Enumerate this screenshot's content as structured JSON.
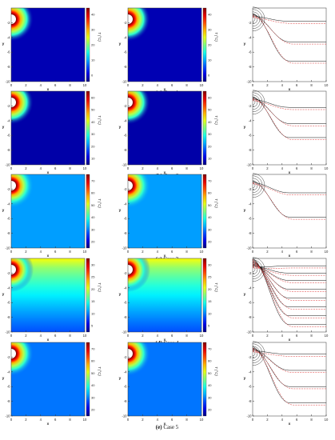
{
  "figure": {
    "cases": [
      {
        "tag": "(a)",
        "label": "Case 1",
        "cb_ticks_1": [
          "40",
          "30",
          "20",
          "10",
          "0"
        ],
        "cb_ticks_2": [
          "40",
          "30",
          "20",
          "10",
          "0"
        ]
      },
      {
        "tag": "(b)",
        "label": "Case 2",
        "cb_ticks_1": [
          "60",
          "50",
          "40",
          "30",
          "20",
          "10"
        ],
        "cb_ticks_2": [
          "60",
          "50",
          "40",
          "30",
          "20",
          "10"
        ]
      },
      {
        "tag": "(c)",
        "label": "Case 3",
        "cb_ticks_1": [
          "70",
          "60",
          "50",
          "40",
          "30",
          "20"
        ],
        "cb_ticks_2": [
          "70",
          "60",
          "50",
          "40",
          "30",
          "20"
        ]
      },
      {
        "tag": "(d)",
        "label": "Case 4",
        "cb_ticks_1": [
          "30",
          "25",
          "20",
          "15",
          "10",
          "5"
        ],
        "cb_ticks_2": [
          "30",
          "25",
          "20",
          "15",
          "10",
          "5"
        ]
      },
      {
        "tag": "(e)",
        "label": "Case 5",
        "cb_ticks_1": [
          "70",
          "60",
          "50",
          "40",
          "30",
          "20"
        ],
        "cb_ticks_2": [
          "70",
          "60",
          "50",
          "40",
          "30",
          "20"
        ]
      }
    ]
  },
  "chart_data": [
    {
      "type": "heatmap",
      "case": "Case 1",
      "column": 1,
      "xlabel": "x",
      "ylabel": "y",
      "colorbar_label": "T (°C)",
      "xlim": [
        0,
        10
      ],
      "ylim": [
        -10,
        0
      ],
      "xticks": [
        "0",
        "2",
        "4",
        "6",
        "8",
        "10"
      ],
      "yticks": [
        "-2",
        "-4",
        "-6",
        "-8",
        "-10"
      ],
      "clim": [
        0,
        45
      ],
      "background_level": 0.05
    },
    {
      "type": "heatmap",
      "case": "Case 1",
      "column": 2,
      "xlabel": "x",
      "ylabel": "y",
      "colorbar_label": "T (°C)",
      "xlim": [
        0,
        10
      ],
      "ylim": [
        -10,
        0
      ],
      "xticks": [
        "0",
        "2",
        "4",
        "6",
        "8",
        "10"
      ],
      "yticks": [
        "-2",
        "-4",
        "-6",
        "-8",
        "-10"
      ],
      "clim": [
        0,
        45
      ],
      "background_level": 0.05
    },
    {
      "type": "line",
      "case": "Case 1",
      "column": 3,
      "xlabel": "x",
      "ylabel": "y",
      "xlim": [
        0,
        10
      ],
      "ylim": [
        -10,
        0
      ],
      "xticks": [
        "0",
        "2",
        "4",
        "6",
        "8",
        "10"
      ],
      "yticks": [
        "-2",
        "-4",
        "-6",
        "-8",
        "-10"
      ],
      "isotherm_depths": [
        -1.8,
        -4.6,
        -7.2
      ],
      "dashed_offset": 0.3
    },
    {
      "type": "heatmap",
      "case": "Case 2",
      "column": 1,
      "xlabel": "x",
      "ylabel": "y",
      "colorbar_label": "T (°C)",
      "xlim": [
        0,
        10
      ],
      "ylim": [
        -10,
        0
      ],
      "xticks": [
        "0",
        "2",
        "4",
        "6",
        "8",
        "10"
      ],
      "yticks": [
        "-2",
        "-4",
        "-6",
        "-8",
        "-10"
      ],
      "clim": [
        5,
        65
      ],
      "background_level": 0.04
    },
    {
      "type": "heatmap",
      "case": "Case 2",
      "column": 2,
      "xlabel": "x",
      "ylabel": "y",
      "colorbar_label": "T (°C)",
      "xlim": [
        0,
        10
      ],
      "ylim": [
        -10,
        0
      ],
      "xticks": [
        "0",
        "2",
        "4",
        "6",
        "8",
        "10"
      ],
      "yticks": [
        "-2",
        "-4",
        "-6",
        "-8",
        "-10"
      ],
      "clim": [
        5,
        65
      ],
      "background_level": 0.04
    },
    {
      "type": "line",
      "case": "Case 2",
      "column": 3,
      "xlabel": "x",
      "ylabel": "y",
      "xlim": [
        0,
        10
      ],
      "ylim": [
        -10,
        0
      ],
      "xticks": [
        "0",
        "2",
        "4",
        "6",
        "8",
        "10"
      ],
      "yticks": [
        "-2",
        "-4",
        "-6",
        "-8",
        "-10"
      ],
      "isotherm_depths": [
        -2.2,
        -4.4,
        -6.3
      ],
      "dashed_offset": 0.3
    },
    {
      "type": "heatmap",
      "case": "Case 3",
      "column": 1,
      "xlabel": "x",
      "ylabel": "y",
      "colorbar_label": "T (°C)",
      "xlim": [
        0,
        10
      ],
      "ylim": [
        -10,
        0
      ],
      "xticks": [
        "0",
        "2",
        "4",
        "6",
        "8",
        "10"
      ],
      "yticks": [
        "-2",
        "-4",
        "-6",
        "-8",
        "-10"
      ],
      "clim": [
        15,
        75
      ],
      "background_level": 0.28
    },
    {
      "type": "heatmap",
      "case": "Case 3",
      "column": 2,
      "xlabel": "x",
      "ylabel": "y",
      "colorbar_label": "T (°C)",
      "xlim": [
        0,
        10
      ],
      "ylim": [
        -10,
        0
      ],
      "xticks": [
        "0",
        "2",
        "4",
        "6",
        "8",
        "10"
      ],
      "yticks": [
        "-2",
        "-4",
        "-6",
        "-8",
        "-10"
      ],
      "clim": [
        15,
        75
      ],
      "background_level": 0.28
    },
    {
      "type": "line",
      "case": "Case 3",
      "column": 3,
      "xlabel": "x",
      "ylabel": "y",
      "xlim": [
        0,
        10
      ],
      "ylim": [
        -10,
        0
      ],
      "xticks": [
        "0",
        "2",
        "4",
        "6",
        "8",
        "10"
      ],
      "yticks": [
        "-2",
        "-4",
        "-6",
        "-8",
        "-10"
      ],
      "isotherm_depths": [
        -2.5,
        -5.8
      ],
      "dashed_offset": 0.3
    },
    {
      "type": "heatmap",
      "case": "Case 4",
      "column": 1,
      "xlabel": "x",
      "ylabel": "y",
      "colorbar_label": "T (°C)",
      "xlim": [
        0,
        10
      ],
      "ylim": [
        -10,
        0
      ],
      "xticks": [
        "0",
        "2",
        "4",
        "6",
        "8",
        "10"
      ],
      "yticks": [
        "-2",
        "-4",
        "-6",
        "-8",
        "-10"
      ],
      "clim": [
        0,
        35
      ],
      "background_level": 0.2,
      "top_level": 0.62
    },
    {
      "type": "heatmap",
      "case": "Case 4",
      "column": 2,
      "xlabel": "x",
      "ylabel": "y",
      "colorbar_label": "T (°C)",
      "xlim": [
        0,
        10
      ],
      "ylim": [
        -10,
        0
      ],
      "xticks": [
        "0",
        "2",
        "4",
        "6",
        "8",
        "10"
      ],
      "yticks": [
        "-2",
        "-4",
        "-6",
        "-8",
        "-10"
      ],
      "clim": [
        0,
        35
      ],
      "background_level": 0.2,
      "top_level": 0.62
    },
    {
      "type": "line",
      "case": "Case 4",
      "column": 3,
      "xlabel": "x",
      "ylabel": "y",
      "xlim": [
        0,
        10
      ],
      "ylim": [
        -10,
        0
      ],
      "xticks": [
        "0",
        "2",
        "4",
        "6",
        "8",
        "10"
      ],
      "yticks": [
        "-2",
        "-4",
        "-6",
        "-8",
        "-10"
      ],
      "isotherm_depths": [
        -1.0,
        -2.0,
        -3.0,
        -4.2,
        -5.4,
        -6.6,
        -7.8,
        -9.0
      ],
      "dashed_offset": 0.3
    },
    {
      "type": "heatmap",
      "case": "Case 5",
      "column": 1,
      "xlabel": "x",
      "ylabel": "y",
      "colorbar_label": "T (°C)",
      "xlim": [
        0,
        10
      ],
      "ylim": [
        -10,
        0
      ],
      "xticks": [
        "0",
        "2",
        "4",
        "6",
        "8",
        "10"
      ],
      "yticks": [
        "-2",
        "-4",
        "-6",
        "-8",
        "-10"
      ],
      "clim": [
        15,
        75
      ],
      "background_level": 0.24
    },
    {
      "type": "heatmap",
      "case": "Case 5",
      "column": 2,
      "xlabel": "x",
      "ylabel": "y",
      "colorbar_label": "T (°C)",
      "xlim": [
        0,
        10
      ],
      "ylim": [
        -10,
        0
      ],
      "xticks": [
        "0",
        "2",
        "4",
        "6",
        "8",
        "10"
      ],
      "yticks": [
        "-2",
        "-4",
        "-6",
        "-8",
        "-10"
      ],
      "clim": [
        15,
        75
      ],
      "background_level": 0.24
    },
    {
      "type": "line",
      "case": "Case 5",
      "column": 3,
      "xlabel": "x",
      "ylabel": "y",
      "xlim": [
        0,
        10
      ],
      "ylim": [
        -10,
        0
      ],
      "xticks": [
        "0",
        "2",
        "4",
        "6",
        "8",
        "10"
      ],
      "yticks": [
        "-2",
        "-4",
        "-6",
        "-8",
        "-10"
      ],
      "isotherm_depths": [
        -1.6,
        -3.8,
        -6.0,
        -8.2
      ],
      "dashed_offset": 0.3
    }
  ]
}
